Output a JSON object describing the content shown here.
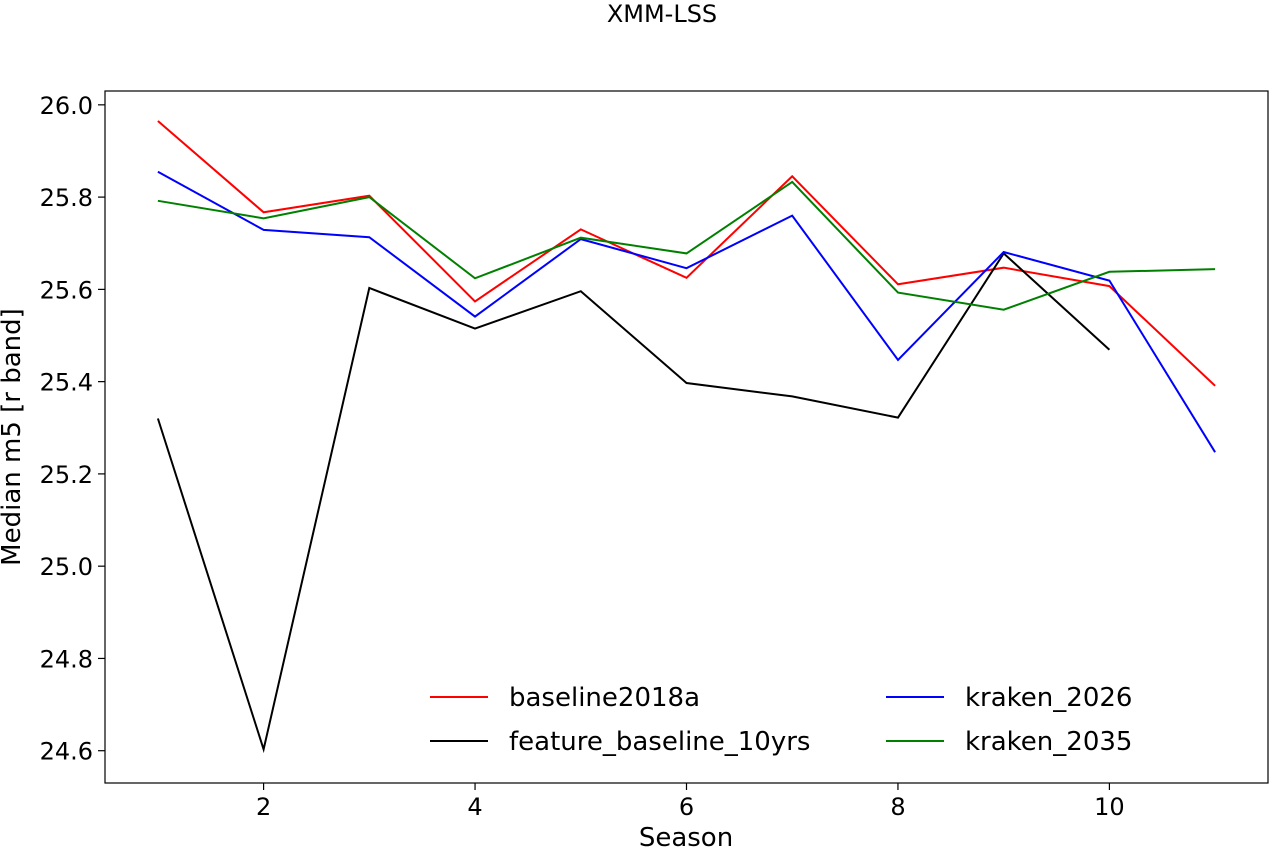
{
  "chart_data": {
    "type": "line",
    "title": "XMM-LSS",
    "xlabel": "Season",
    "ylabel": "Median m5 [r band]",
    "xlim": [
      0.5,
      11.5
    ],
    "ylim": [
      24.53,
      26.03
    ],
    "xticks": [
      2,
      4,
      6,
      8,
      10
    ],
    "yticks": [
      24.6,
      24.8,
      25.0,
      25.2,
      25.4,
      25.6,
      25.8,
      26.0
    ],
    "grid": false,
    "legend_placement": "lower-center, 2 columns",
    "series": [
      {
        "name": "baseline2018a",
        "color": "#ff0000",
        "x": [
          1,
          2,
          3,
          4,
          5,
          6,
          7,
          8,
          9,
          10,
          11
        ],
        "y": [
          25.965,
          25.767,
          25.803,
          25.574,
          25.73,
          25.625,
          25.845,
          25.611,
          25.647,
          25.607,
          25.391
        ]
      },
      {
        "name": "feature_baseline_10yrs",
        "color": "#000000",
        "x": [
          1,
          2,
          3,
          4,
          5,
          6,
          7,
          8,
          9,
          10
        ],
        "y": [
          25.32,
          24.603,
          25.603,
          25.515,
          25.596,
          25.397,
          25.368,
          25.322,
          25.678,
          25.469
        ]
      },
      {
        "name": "kraken_2026",
        "color": "#0000ff",
        "x": [
          1,
          2,
          3,
          4,
          5,
          6,
          7,
          8,
          9,
          10,
          11
        ],
        "y": [
          25.855,
          25.729,
          25.713,
          25.541,
          25.709,
          25.646,
          25.76,
          25.447,
          25.681,
          25.619,
          25.247
        ]
      },
      {
        "name": "kraken_2035",
        "color": "#008000",
        "x": [
          1,
          2,
          3,
          4,
          5,
          6,
          7,
          8,
          9,
          10,
          11
        ],
        "y": [
          25.792,
          25.754,
          25.8,
          25.624,
          25.712,
          25.678,
          25.833,
          25.593,
          25.556,
          25.638,
          25.644
        ]
      }
    ]
  }
}
